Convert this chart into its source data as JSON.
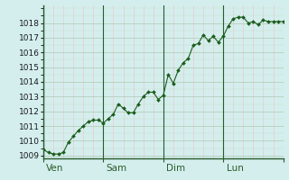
{
  "background_color": "#d4eeee",
  "line_color": "#1a5c1a",
  "marker_color": "#1a5c1a",
  "grid_color_major_h": "#b0c8b0",
  "grid_color_major_v": "#e8a0a0",
  "grid_color_minor_h": "#c8dcc8",
  "grid_color_minor_v": "#f0c0c0",
  "day_label_color": "#2a5c2a",
  "spine_color": "#2a5c2a",
  "x_day_labels": [
    "Ven",
    "Sam",
    "Dim",
    "Lun"
  ],
  "ylim": [
    1008.8,
    1019.2
  ],
  "yticks": [
    1009,
    1010,
    1011,
    1012,
    1013,
    1014,
    1015,
    1016,
    1017,
    1018
  ],
  "num_days": 4,
  "data_y": [
    1009.4,
    1009.2,
    1009.1,
    1009.1,
    1009.2,
    1009.9,
    1010.3,
    1010.7,
    1011.0,
    1011.3,
    1011.4,
    1011.4,
    1011.2,
    1011.5,
    1011.8,
    1012.5,
    1012.2,
    1011.9,
    1011.9,
    1012.5,
    1013.0,
    1013.3,
    1013.3,
    1012.8,
    1013.1,
    1014.5,
    1013.9,
    1014.8,
    1015.3,
    1015.6,
    1016.5,
    1016.6,
    1017.2,
    1016.8,
    1017.1,
    1016.7,
    1017.1,
    1017.8,
    1018.3,
    1018.4,
    1018.4,
    1018.0,
    1018.1,
    1017.9,
    1018.2,
    1018.1,
    1018.1,
    1018.1,
    1018.1
  ],
  "tick_label_fontsize": 6.5,
  "day_label_fontsize": 7.5
}
